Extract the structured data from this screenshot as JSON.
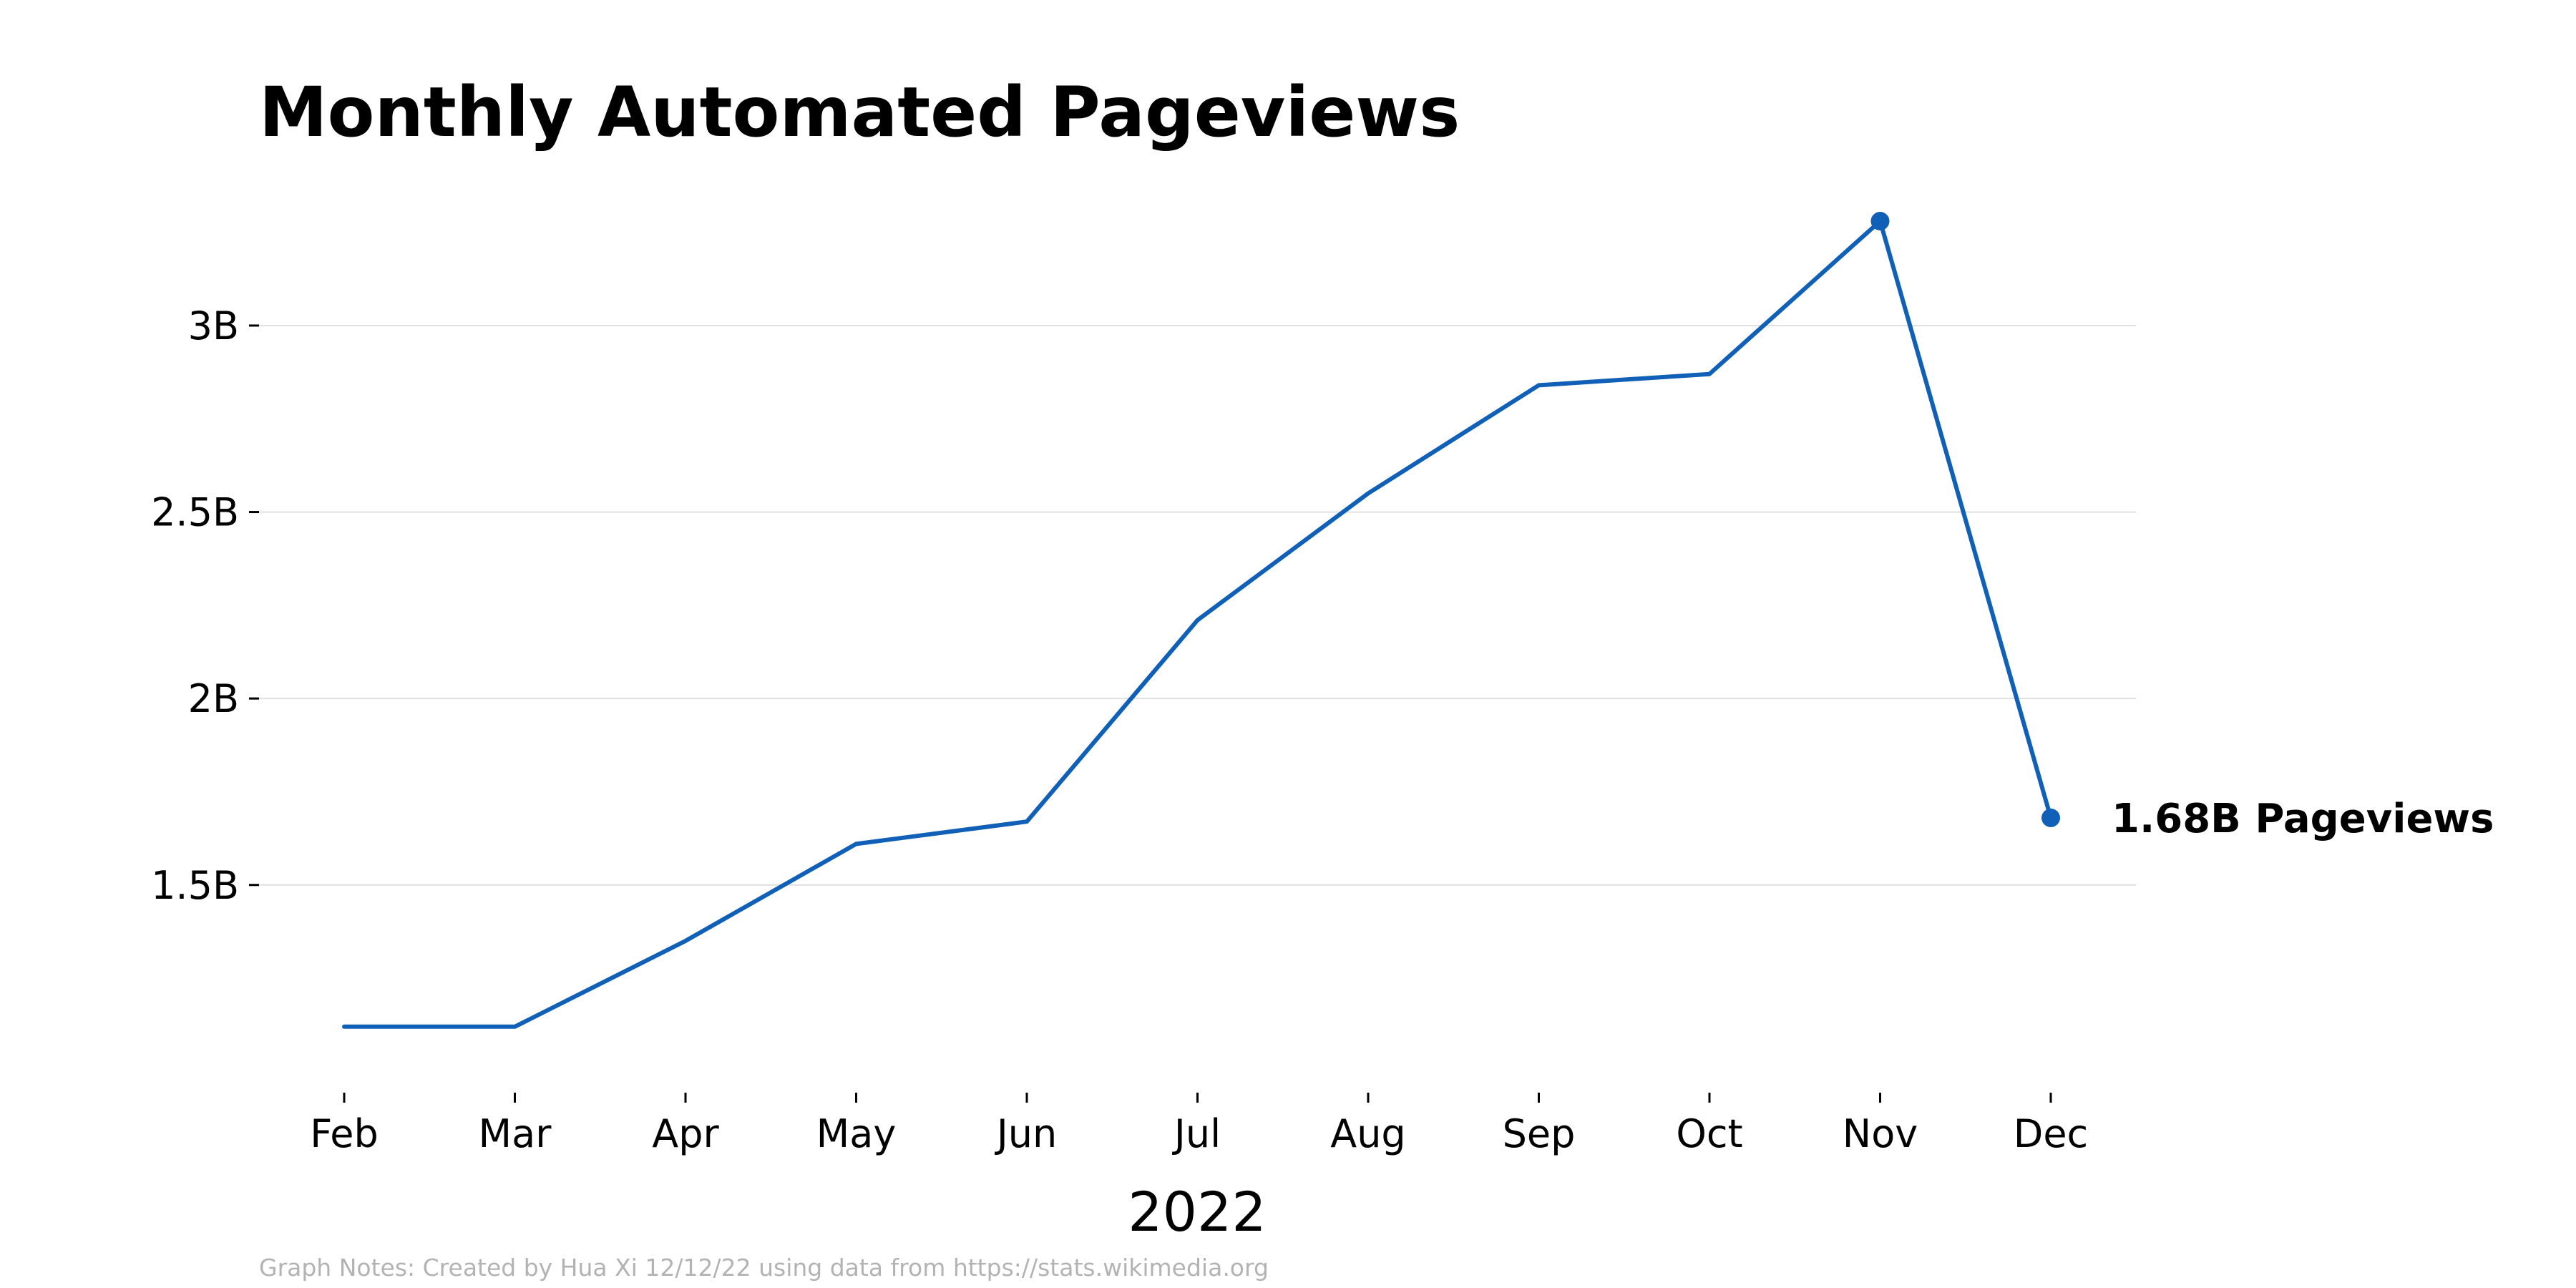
{
  "chart_data": {
    "type": "line",
    "title": "Monthly Automated Pageviews",
    "xlabel": "2022",
    "ylabel": "",
    "categories": [
      "Feb",
      "Mar",
      "Apr",
      "May",
      "Jun",
      "Jul",
      "Aug",
      "Sep",
      "Oct",
      "Nov",
      "Dec"
    ],
    "series": [
      {
        "values": [
          1.12,
          1.12,
          1.35,
          1.61,
          1.67,
          2.21,
          2.55,
          2.84,
          2.87,
          3.28,
          1.68
        ]
      }
    ],
    "units": "B",
    "ylim": [
      0.97,
      3.47
    ],
    "yticks": [
      1.5,
      2.0,
      2.5,
      3.0
    ],
    "ytick_labels": [
      "1.5B",
      "2B",
      "2.5B",
      "3B"
    ],
    "grid": true,
    "legend": "none",
    "line_color": "#1060b8",
    "highlight_points": [
      9,
      10
    ],
    "annotation": {
      "point_index": 10,
      "text": "1.68B Pageviews"
    },
    "footnote": "Graph Notes: Created by Hua Xi 12/12/22 using data from https://stats.wikimedia.org"
  }
}
